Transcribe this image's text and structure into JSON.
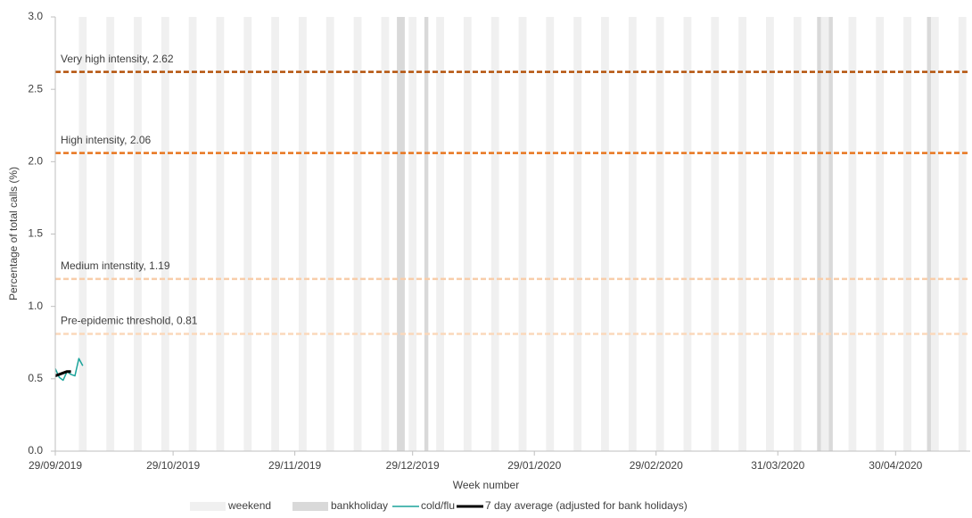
{
  "chart_data": {
    "type": "line",
    "x_label": "Week number",
    "y_label": "Percentage of total calls (%)",
    "xlim": [
      "29/09/2019",
      "19/05/2020"
    ],
    "xticks": [
      "29/09/2019",
      "29/10/2019",
      "29/11/2019",
      "29/12/2019",
      "29/01/2020",
      "29/02/2020",
      "31/03/2020",
      "30/04/2020"
    ],
    "ylim": [
      0,
      3
    ],
    "yticks": [
      {
        "value": 0,
        "label": "0.0"
      },
      0.5,
      {
        "value": 1,
        "label": "1.0"
      },
      1.5,
      {
        "value": 2,
        "label": "2.0"
      },
      2.5,
      {
        "value": 3,
        "label": "3.0"
      }
    ],
    "legend": "bottom",
    "reference_lines": [
      {
        "label": "Very high intensity, 2.62",
        "value": 2.62,
        "color": "#b4520a"
      },
      {
        "label": "High intensity, 2.06",
        "value": 2.06,
        "color": "#e8761f"
      },
      {
        "label": "Medium intenstity, 1.19",
        "value": 1.19,
        "color": "#f8cdaa"
      },
      {
        "label": "Pre-epidemic threshold, 0.81",
        "value": 0.81,
        "color": "#fbd8bb"
      }
    ],
    "series": [
      {
        "name": "weekend",
        "style": "band",
        "days": 2,
        "color": "#f0f0f0",
        "x": [
          "05/10/2019",
          "12/10/2019",
          "19/10/2019",
          "26/10/2019",
          "02/11/2019",
          "09/11/2019",
          "16/11/2019",
          "23/11/2019",
          "30/11/2019",
          "07/12/2019",
          "14/12/2019",
          "21/12/2019",
          "28/12/2019",
          "04/01/2020",
          "11/01/2020",
          "18/01/2020",
          "25/01/2020",
          "01/02/2020",
          "08/02/2020",
          "15/02/2020",
          "22/02/2020",
          "29/02/2020",
          "07/03/2020",
          "14/03/2020",
          "21/03/2020",
          "28/03/2020",
          "04/04/2020",
          "11/04/2020",
          "18/04/2020",
          "25/04/2020",
          "02/05/2020",
          "09/05/2020",
          "16/05/2020"
        ]
      },
      {
        "name": "bankholiday",
        "style": "band",
        "days": 1,
        "color": "#d9d9d9",
        "x": [
          "25/12/2019",
          "26/12/2019",
          "01/01/2020",
          "10/04/2020",
          "13/04/2020",
          "08/05/2020"
        ]
      },
      {
        "name": "cold/flu",
        "style": "line",
        "line_width": 1.5,
        "color": "#1aa39a",
        "x": [
          "29/09/2019",
          "30/09/2019",
          "01/10/2019",
          "02/10/2019",
          "03/10/2019",
          "04/10/2019",
          "05/10/2019",
          "06/10/2019"
        ],
        "values": [
          0.57,
          0.51,
          0.49,
          0.55,
          0.53,
          0.52,
          0.64,
          0.59
        ]
      },
      {
        "name": "7 day average (adjusted for bank holidays)",
        "style": "line",
        "line_width": 3,
        "color": "#000000",
        "x": [
          "29/09/2019",
          "30/09/2019",
          "01/10/2019",
          "02/10/2019",
          "03/10/2019"
        ],
        "values": [
          0.52,
          0.53,
          0.54,
          0.55,
          0.55
        ]
      }
    ]
  }
}
